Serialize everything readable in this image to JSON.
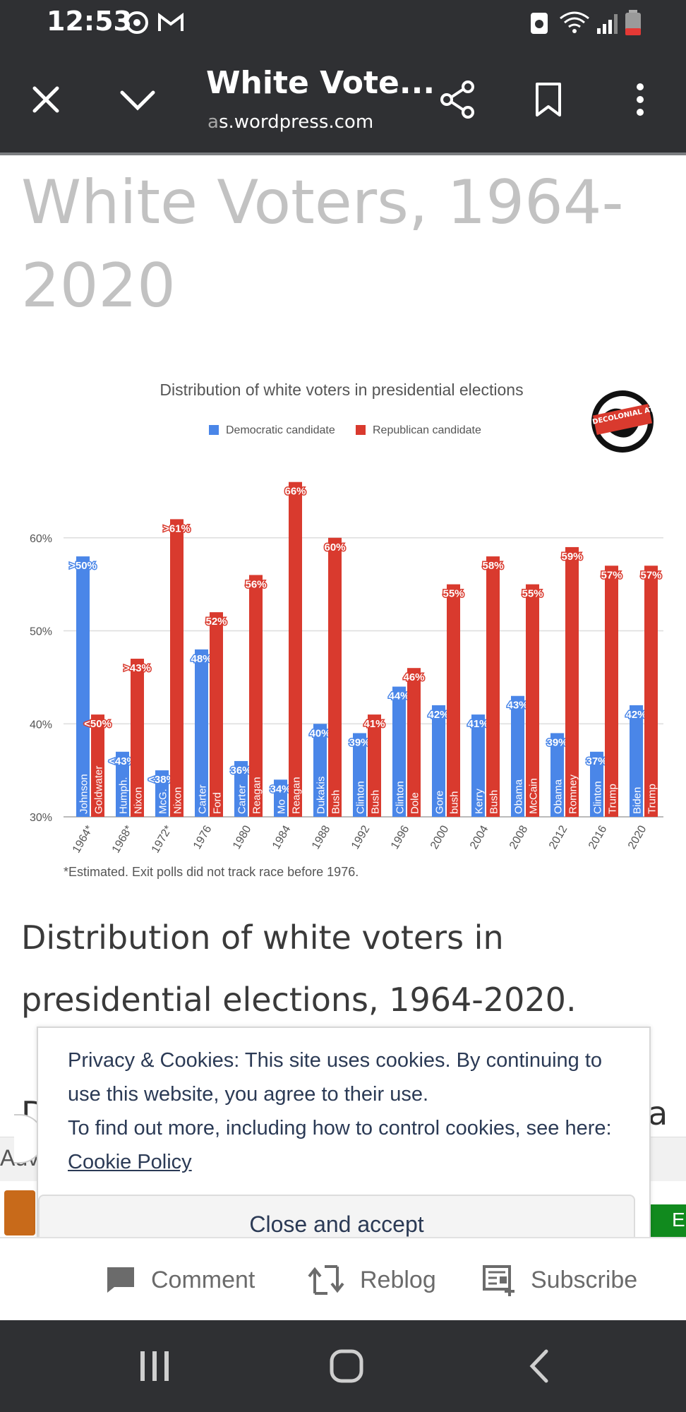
{
  "status_bar": {
    "time": "12:53"
  },
  "toolbar": {
    "title": "White Vote...",
    "url_faded": "a",
    "url_main": "s.wordpress.com"
  },
  "post": {
    "title": "White Voters, 1964-2020",
    "caption": "Distribution of white voters in presidential elections, 1964-2020."
  },
  "chart_data": {
    "type": "bar",
    "title": "Distribution of white voters in presidential elections",
    "logo_text": "THE DECOLONIAL ATLAS",
    "footnote": "*Estimated. Exit polls did not track race before 1976.",
    "ylim": [
      30,
      70
    ],
    "y_ticks": [
      "60%",
      "50%",
      "40%",
      "30%"
    ],
    "y_tick_values": [
      60,
      50,
      40,
      30
    ],
    "categories": [
      "1964*",
      "1968*",
      "1972*",
      "1976",
      "1980",
      "1984",
      "1988",
      "1992",
      "1996",
      "2000",
      "2004",
      "2008",
      "2012",
      "2016",
      "2020"
    ],
    "dem_names": [
      "Johnson",
      "Humph.",
      "McG.",
      "Carter",
      "Carter",
      "Mo",
      "Dukakis",
      "Clinton",
      "Clinton",
      "Gore",
      "Kerry",
      "Obama",
      "Obama",
      "Clinton",
      "Biden"
    ],
    "rep_names": [
      "Goldwater",
      "Nixon",
      "Nixon",
      "Ford",
      "Reagan",
      "Reagan",
      "Bush",
      "Bush",
      "Dole",
      "bush",
      "Bush",
      "McCain",
      "Romney",
      "Trump",
      "Trump"
    ],
    "series": [
      {
        "name": "Democratic candidate",
        "color": "#4a86e8",
        "values": [
          58,
          37,
          35,
          48,
          36,
          34,
          40,
          39,
          44,
          42,
          41,
          43,
          39,
          37,
          42
        ],
        "labels": [
          ">50%",
          "<43%",
          "<38%",
          "48%",
          "36%",
          "34%",
          "40%",
          "39%",
          "44%",
          "42%",
          "41%",
          "43%",
          "39%",
          "37%",
          "42%"
        ]
      },
      {
        "name": "Republican candidate",
        "color": "#d93a2e",
        "values": [
          41,
          47,
          62,
          52,
          56,
          66,
          60,
          41,
          46,
          55,
          58,
          55,
          59,
          57,
          57
        ],
        "labels": [
          "<50%",
          ">43%",
          ">61%",
          "52%",
          "56%",
          "66%",
          "60%",
          "41%",
          "46%",
          "55%",
          "58%",
          "55%",
          "59%",
          "57%",
          "57%"
        ]
      }
    ]
  },
  "peek": {
    "left": "D",
    "right": "a"
  },
  "ad": {
    "label": "Adv",
    "green_text": "E"
  },
  "cookie": {
    "text_1": "Privacy & Cookies: This site uses cookies. By continuing to use this website, you agree to their use.",
    "text_2": "To find out more, including how to control cookies, see here: ",
    "link": "Cookie Policy",
    "button": "Close and accept"
  },
  "actions": {
    "comment": "Comment",
    "reblog": "Reblog",
    "subscribe": "Subscribe"
  }
}
